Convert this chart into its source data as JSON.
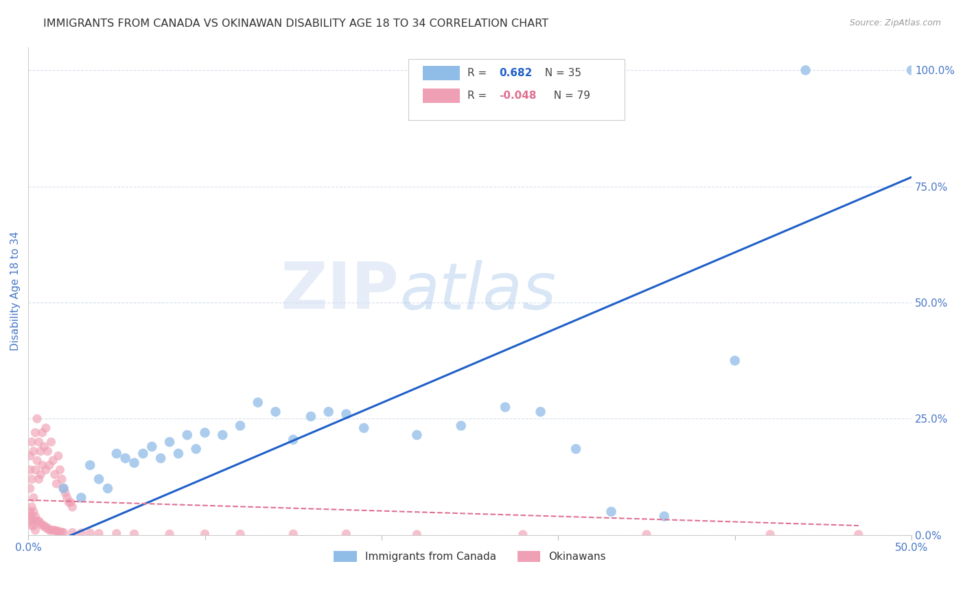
{
  "title": "IMMIGRANTS FROM CANADA VS OKINAWAN DISABILITY AGE 18 TO 34 CORRELATION CHART",
  "source": "Source: ZipAtlas.com",
  "ylabel": "Disability Age 18 to 34",
  "xlim": [
    0.0,
    0.5
  ],
  "ylim": [
    0.0,
    1.05
  ],
  "ytick_labels_right": [
    "0.0%",
    "25.0%",
    "50.0%",
    "75.0%",
    "100.0%"
  ],
  "ytick_positions_right": [
    0.0,
    0.25,
    0.5,
    0.75,
    1.0
  ],
  "watermark_zip": "ZIP",
  "watermark_atlas": "atlas",
  "blue_scatter_x": [
    0.02,
    0.03,
    0.035,
    0.04,
    0.045,
    0.05,
    0.055,
    0.06,
    0.065,
    0.07,
    0.075,
    0.08,
    0.085,
    0.09,
    0.095,
    0.1,
    0.11,
    0.12,
    0.13,
    0.14,
    0.15,
    0.16,
    0.17,
    0.18,
    0.19,
    0.22,
    0.245,
    0.27,
    0.29,
    0.31,
    0.33,
    0.36,
    0.4,
    0.44,
    0.5
  ],
  "blue_scatter_y": [
    0.1,
    0.08,
    0.15,
    0.12,
    0.1,
    0.175,
    0.165,
    0.155,
    0.175,
    0.19,
    0.165,
    0.2,
    0.175,
    0.215,
    0.185,
    0.22,
    0.215,
    0.235,
    0.285,
    0.265,
    0.205,
    0.255,
    0.265,
    0.26,
    0.23,
    0.215,
    0.235,
    0.275,
    0.265,
    0.185,
    0.05,
    0.04,
    0.375,
    1.0,
    1.0
  ],
  "pink_scatter_x": [
    0.001,
    0.001,
    0.001,
    0.002,
    0.002,
    0.003,
    0.003,
    0.004,
    0.004,
    0.005,
    0.005,
    0.006,
    0.006,
    0.007,
    0.007,
    0.008,
    0.008,
    0.009,
    0.01,
    0.01,
    0.011,
    0.012,
    0.013,
    0.014,
    0.015,
    0.016,
    0.017,
    0.018,
    0.019,
    0.02,
    0.021,
    0.022,
    0.023,
    0.024,
    0.025,
    0.001,
    0.001,
    0.002,
    0.002,
    0.003,
    0.003,
    0.004,
    0.005,
    0.006,
    0.007,
    0.008,
    0.009,
    0.01,
    0.011,
    0.012,
    0.013,
    0.014,
    0.015,
    0.016,
    0.017,
    0.018,
    0.019,
    0.02,
    0.025,
    0.03,
    0.035,
    0.04,
    0.05,
    0.06,
    0.08,
    0.1,
    0.12,
    0.15,
    0.18,
    0.22,
    0.28,
    0.35,
    0.42,
    0.47,
    0.001,
    0.002,
    0.003,
    0.004
  ],
  "pink_scatter_y": [
    0.17,
    0.14,
    0.1,
    0.2,
    0.12,
    0.18,
    0.08,
    0.22,
    0.14,
    0.25,
    0.16,
    0.2,
    0.12,
    0.18,
    0.13,
    0.22,
    0.15,
    0.19,
    0.23,
    0.14,
    0.18,
    0.15,
    0.2,
    0.16,
    0.13,
    0.11,
    0.17,
    0.14,
    0.12,
    0.1,
    0.09,
    0.08,
    0.07,
    0.07,
    0.06,
    0.05,
    0.04,
    0.06,
    0.04,
    0.05,
    0.03,
    0.04,
    0.03,
    0.03,
    0.025,
    0.02,
    0.02,
    0.015,
    0.015,
    0.01,
    0.01,
    0.01,
    0.01,
    0.008,
    0.008,
    0.006,
    0.006,
    0.005,
    0.005,
    0.004,
    0.004,
    0.003,
    0.003,
    0.002,
    0.002,
    0.002,
    0.002,
    0.002,
    0.002,
    0.001,
    0.001,
    0.001,
    0.001,
    0.001,
    0.03,
    0.02,
    0.02,
    0.01
  ],
  "blue_line_x": [
    0.0,
    0.5
  ],
  "blue_line_y": [
    -0.04,
    0.77
  ],
  "pink_line_x": [
    0.0,
    0.47
  ],
  "pink_line_y": [
    0.075,
    0.02
  ],
  "blue_color": "#90bce8",
  "pink_color": "#f0a0b5",
  "blue_line_color": "#2060c8",
  "pink_line_color": "#e07090",
  "bg_color": "#ffffff",
  "grid_color": "#d8e0ec",
  "title_color": "#333333",
  "axis_label_color": "#4878c8",
  "tick_label_color": "#4878c8",
  "legend_r1_color": "#2060c8",
  "legend_r2_color": "#e07090",
  "legend_n1_color": "#333333",
  "legend_n2_color": "#333333"
}
